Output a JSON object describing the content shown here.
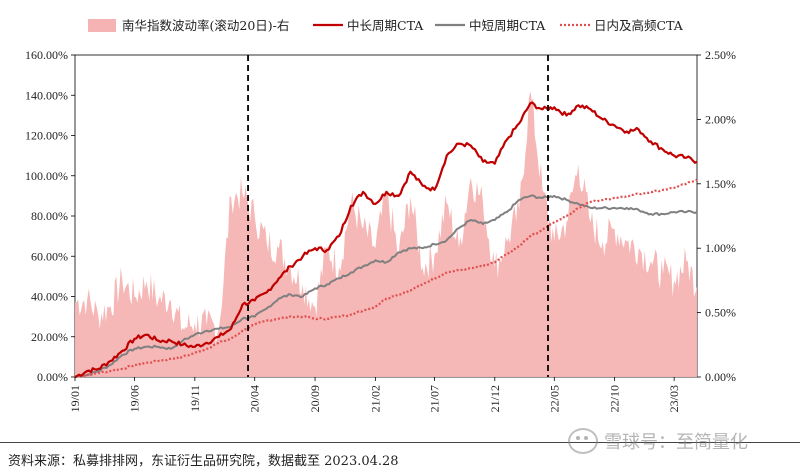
{
  "chart_data": {
    "type": "line",
    "legend": [
      {
        "key": "vol",
        "label": "南华指数波动率(滚动20日)-右",
        "color": "#f6b3b3",
        "style": "area"
      },
      {
        "key": "long",
        "label": "中长周期CTA",
        "color": "#c00000",
        "style": "solid"
      },
      {
        "key": "short",
        "label": "中短周期CTA",
        "color": "#808080",
        "style": "solid"
      },
      {
        "key": "intra",
        "label": "日内及高频CTA",
        "color": "#e05050",
        "style": "dotted"
      }
    ],
    "legend_placement": "top",
    "left_axis": {
      "min": 0,
      "max": 160,
      "ticks": [
        0,
        20,
        40,
        60,
        80,
        100,
        120,
        140,
        160
      ],
      "tick_labels": [
        "0.00%",
        "20.00%",
        "40.00%",
        "60.00%",
        "80.00%",
        "100.00%",
        "120.00%",
        "140.00%",
        "160.00%"
      ]
    },
    "right_axis": {
      "min": 0,
      "max": 2.5,
      "ticks": [
        0,
        0.5,
        1.0,
        1.5,
        2.0,
        2.5
      ],
      "tick_labels": [
        "0.00%",
        "0.50%",
        "1.00%",
        "1.50%",
        "2.00%",
        "2.50%"
      ]
    },
    "x_axis": {
      "start": "2019-01-01",
      "end": "2023-04-28",
      "ticks": [
        "2019-01-01",
        "2019-06-01",
        "2019-11-01",
        "2020-04-01",
        "2020-09-01",
        "2021-02-01",
        "2021-07-01",
        "2021-12-01",
        "2022-05-01",
        "2022-10-01",
        "2023-03-01"
      ],
      "tick_labels": [
        "19/01",
        "19/06",
        "19/11",
        "20/04",
        "20/09",
        "21/02",
        "21/07",
        "21/12",
        "22/05",
        "22/10",
        "23/03"
      ]
    },
    "vlines": [
      "2020-03-15",
      "2022-04-15"
    ],
    "series": [
      {
        "key": "long",
        "values": [
          [
            "2019-01-01",
            0
          ],
          [
            "2019-02-01",
            3
          ],
          [
            "2019-03-01",
            4
          ],
          [
            "2019-04-01",
            8
          ],
          [
            "2019-05-01",
            13
          ],
          [
            "2019-06-01",
            19
          ],
          [
            "2019-07-01",
            21
          ],
          [
            "2019-08-01",
            18
          ],
          [
            "2019-09-01",
            18
          ],
          [
            "2019-10-01",
            16
          ],
          [
            "2019-11-01",
            15
          ],
          [
            "2019-12-01",
            17
          ],
          [
            "2020-01-01",
            20
          ],
          [
            "2020-02-01",
            24
          ],
          [
            "2020-03-01",
            36
          ],
          [
            "2020-04-01",
            38
          ],
          [
            "2020-05-01",
            42
          ],
          [
            "2020-06-01",
            49
          ],
          [
            "2020-07-01",
            55
          ],
          [
            "2020-08-01",
            60
          ],
          [
            "2020-09-01",
            64
          ],
          [
            "2020-10-01",
            63
          ],
          [
            "2020-11-01",
            70
          ],
          [
            "2020-12-01",
            85
          ],
          [
            "2021-01-01",
            92
          ],
          [
            "2021-02-01",
            86
          ],
          [
            "2021-03-01",
            92
          ],
          [
            "2021-04-01",
            90
          ],
          [
            "2021-05-01",
            102
          ],
          [
            "2021-06-01",
            95
          ],
          [
            "2021-07-01",
            93
          ],
          [
            "2021-08-01",
            110
          ],
          [
            "2021-09-01",
            116
          ],
          [
            "2021-10-01",
            115
          ],
          [
            "2021-11-01",
            107
          ],
          [
            "2021-12-01",
            106
          ],
          [
            "2022-01-01",
            118
          ],
          [
            "2022-02-01",
            126
          ],
          [
            "2022-03-01",
            136
          ],
          [
            "2022-04-01",
            133
          ],
          [
            "2022-05-01",
            134
          ],
          [
            "2022-06-01",
            130
          ],
          [
            "2022-07-01",
            135
          ],
          [
            "2022-08-01",
            133
          ],
          [
            "2022-09-01",
            128
          ],
          [
            "2022-10-01",
            125
          ],
          [
            "2022-11-01",
            122
          ],
          [
            "2022-12-01",
            123
          ],
          [
            "2023-01-01",
            117
          ],
          [
            "2023-02-01",
            113
          ],
          [
            "2023-03-01",
            110
          ],
          [
            "2023-04-01",
            109
          ],
          [
            "2023-04-28",
            107
          ]
        ]
      },
      {
        "key": "short",
        "values": [
          [
            "2019-01-01",
            0
          ],
          [
            "2019-02-01",
            1
          ],
          [
            "2019-03-01",
            3
          ],
          [
            "2019-04-01",
            6
          ],
          [
            "2019-05-01",
            11
          ],
          [
            "2019-06-01",
            14
          ],
          [
            "2019-07-01",
            15
          ],
          [
            "2019-08-01",
            15
          ],
          [
            "2019-09-01",
            14
          ],
          [
            "2019-10-01",
            18
          ],
          [
            "2019-11-01",
            21
          ],
          [
            "2019-12-01",
            23
          ],
          [
            "2020-01-01",
            24
          ],
          [
            "2020-02-01",
            25
          ],
          [
            "2020-03-01",
            29
          ],
          [
            "2020-04-01",
            30
          ],
          [
            "2020-05-01",
            34
          ],
          [
            "2020-06-01",
            39
          ],
          [
            "2020-07-01",
            41
          ],
          [
            "2020-08-01",
            40
          ],
          [
            "2020-09-01",
            44
          ],
          [
            "2020-10-01",
            46
          ],
          [
            "2020-11-01",
            49
          ],
          [
            "2020-12-01",
            52
          ],
          [
            "2021-01-01",
            55
          ],
          [
            "2021-02-01",
            58
          ],
          [
            "2021-03-01",
            57
          ],
          [
            "2021-04-01",
            62
          ],
          [
            "2021-05-01",
            64
          ],
          [
            "2021-06-01",
            64
          ],
          [
            "2021-07-01",
            66
          ],
          [
            "2021-08-01",
            68
          ],
          [
            "2021-09-01",
            74
          ],
          [
            "2021-10-01",
            78
          ],
          [
            "2021-11-01",
            76
          ],
          [
            "2021-12-01",
            78
          ],
          [
            "2022-01-01",
            82
          ],
          [
            "2022-02-01",
            88
          ],
          [
            "2022-03-01",
            90
          ],
          [
            "2022-04-01",
            89
          ],
          [
            "2022-05-01",
            90
          ],
          [
            "2022-06-01",
            88
          ],
          [
            "2022-07-01",
            86
          ],
          [
            "2022-08-01",
            84
          ],
          [
            "2022-09-01",
            84
          ],
          [
            "2022-10-01",
            84
          ],
          [
            "2022-11-01",
            84
          ],
          [
            "2022-12-01",
            83
          ],
          [
            "2023-01-01",
            81
          ],
          [
            "2023-02-01",
            81
          ],
          [
            "2023-03-01",
            82
          ],
          [
            "2023-04-01",
            82
          ],
          [
            "2023-04-28",
            82
          ]
        ]
      },
      {
        "key": "intra",
        "values": [
          [
            "2019-01-01",
            0
          ],
          [
            "2019-02-01",
            1
          ],
          [
            "2019-03-01",
            2
          ],
          [
            "2019-04-01",
            3
          ],
          [
            "2019-05-01",
            4
          ],
          [
            "2019-06-01",
            6
          ],
          [
            "2019-07-01",
            7
          ],
          [
            "2019-08-01",
            8
          ],
          [
            "2019-09-01",
            9
          ],
          [
            "2019-10-01",
            10
          ],
          [
            "2019-11-01",
            12
          ],
          [
            "2019-12-01",
            14
          ],
          [
            "2020-01-01",
            17
          ],
          [
            "2020-02-01",
            19
          ],
          [
            "2020-03-01",
            23
          ],
          [
            "2020-04-01",
            26
          ],
          [
            "2020-05-01",
            28
          ],
          [
            "2020-06-01",
            29
          ],
          [
            "2020-07-01",
            30
          ],
          [
            "2020-08-01",
            30
          ],
          [
            "2020-09-01",
            29
          ],
          [
            "2020-10-01",
            29
          ],
          [
            "2020-11-01",
            30
          ],
          [
            "2020-12-01",
            31
          ],
          [
            "2021-01-01",
            33
          ],
          [
            "2021-02-01",
            35
          ],
          [
            "2021-03-01",
            39
          ],
          [
            "2021-04-01",
            41
          ],
          [
            "2021-05-01",
            43
          ],
          [
            "2021-06-01",
            46
          ],
          [
            "2021-07-01",
            49
          ],
          [
            "2021-08-01",
            52
          ],
          [
            "2021-09-01",
            53
          ],
          [
            "2021-10-01",
            54
          ],
          [
            "2021-11-01",
            55
          ],
          [
            "2021-12-01",
            57
          ],
          [
            "2022-01-01",
            61
          ],
          [
            "2022-02-01",
            65
          ],
          [
            "2022-03-01",
            70
          ],
          [
            "2022-04-01",
            73
          ],
          [
            "2022-05-01",
            77
          ],
          [
            "2022-06-01",
            80
          ],
          [
            "2022-07-01",
            84
          ],
          [
            "2022-08-01",
            87
          ],
          [
            "2022-09-01",
            88
          ],
          [
            "2022-10-01",
            89
          ],
          [
            "2022-11-01",
            90
          ],
          [
            "2022-12-01",
            91
          ],
          [
            "2023-01-01",
            92
          ],
          [
            "2023-02-01",
            93
          ],
          [
            "2023-03-01",
            94
          ],
          [
            "2023-04-01",
            96
          ],
          [
            "2023-04-28",
            98
          ]
        ]
      },
      {
        "key": "vol",
        "axis": "right",
        "values": [
          [
            "2019-01-01",
            0.58
          ],
          [
            "2019-02-01",
            0.6
          ],
          [
            "2019-03-01",
            0.48
          ],
          [
            "2019-04-01",
            0.55
          ],
          [
            "2019-05-01",
            0.75
          ],
          [
            "2019-06-01",
            0.62
          ],
          [
            "2019-07-01",
            0.74
          ],
          [
            "2019-08-01",
            0.6
          ],
          [
            "2019-09-01",
            0.6
          ],
          [
            "2019-10-01",
            0.38
          ],
          [
            "2019-11-01",
            0.42
          ],
          [
            "2019-12-01",
            0.4
          ],
          [
            "2020-01-01",
            0.38
          ],
          [
            "2020-02-01",
            1.4
          ],
          [
            "2020-03-01",
            1.42
          ],
          [
            "2020-04-01",
            1.25
          ],
          [
            "2020-05-01",
            1.05
          ],
          [
            "2020-06-01",
            1.0
          ],
          [
            "2020-07-01",
            0.85
          ],
          [
            "2020-08-01",
            0.72
          ],
          [
            "2020-09-01",
            0.55
          ],
          [
            "2020-10-01",
            1.0
          ],
          [
            "2020-11-01",
            0.85
          ],
          [
            "2020-12-01",
            1.35
          ],
          [
            "2021-01-01",
            1.15
          ],
          [
            "2021-02-01",
            1.0
          ],
          [
            "2021-03-01",
            1.42
          ],
          [
            "2021-04-01",
            0.95
          ],
          [
            "2021-05-01",
            1.4
          ],
          [
            "2021-06-01",
            0.85
          ],
          [
            "2021-07-01",
            0.95
          ],
          [
            "2021-08-01",
            1.35
          ],
          [
            "2021-09-01",
            1.0
          ],
          [
            "2021-10-01",
            1.55
          ],
          [
            "2021-11-01",
            1.35
          ],
          [
            "2021-12-01",
            0.85
          ],
          [
            "2022-01-01",
            1.05
          ],
          [
            "2022-02-01",
            1.3
          ],
          [
            "2022-03-01",
            2.22
          ],
          [
            "2022-04-01",
            1.45
          ],
          [
            "2022-05-01",
            1.05
          ],
          [
            "2022-06-01",
            1.2
          ],
          [
            "2022-07-01",
            1.65
          ],
          [
            "2022-08-01",
            1.2
          ],
          [
            "2022-09-01",
            1.05
          ],
          [
            "2022-10-01",
            1.15
          ],
          [
            "2022-11-01",
            1.05
          ],
          [
            "2022-12-01",
            1.0
          ],
          [
            "2023-01-01",
            0.9
          ],
          [
            "2023-02-01",
            0.8
          ],
          [
            "2023-03-01",
            0.75
          ],
          [
            "2023-04-01",
            0.9
          ],
          [
            "2023-04-28",
            0.7
          ]
        ]
      }
    ]
  },
  "footer": {
    "source": "资料来源：私募排排网，东证衍生品研究院，数据截至 2023.04.28",
    "watermark": "雪球号：至简量化"
  }
}
